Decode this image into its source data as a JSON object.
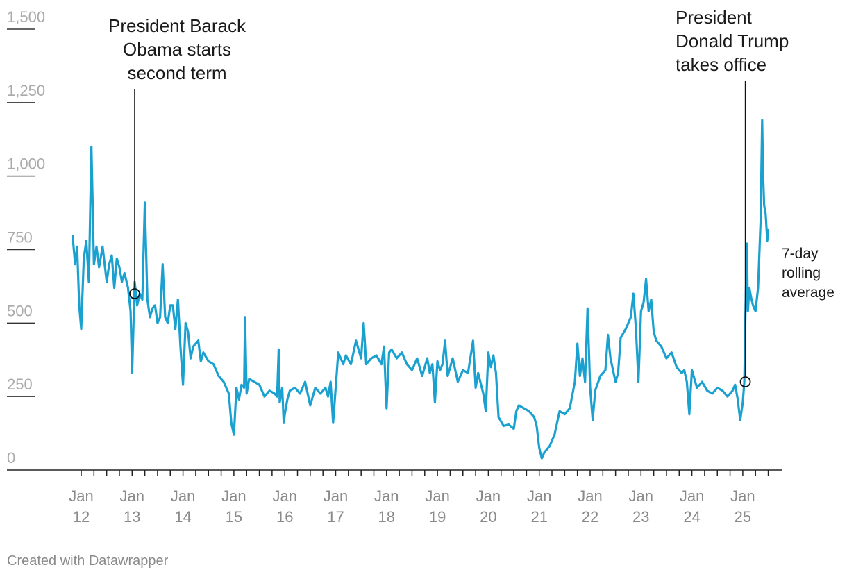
{
  "chart_data": {
    "type": "line",
    "title": "",
    "xlabel": "",
    "ylabel": "",
    "ylim": [
      0,
      1500
    ],
    "y_ticks": [
      "1,500",
      "1,250",
      "1,000",
      "750",
      "500",
      "250",
      "0"
    ],
    "y_tick_values": [
      1500,
      1250,
      1000,
      750,
      500,
      250,
      0
    ],
    "x_ticks": [
      {
        "month": "Jan",
        "year": "12",
        "value": 2012
      },
      {
        "month": "Jan",
        "year": "13",
        "value": 2013
      },
      {
        "month": "Jan",
        "year": "14",
        "value": 2014
      },
      {
        "month": "Jan",
        "year": "15",
        "value": 2015
      },
      {
        "month": "Jan",
        "year": "16",
        "value": 2016
      },
      {
        "month": "Jan",
        "year": "17",
        "value": 2017
      },
      {
        "month": "Jan",
        "year": "18",
        "value": 2018
      },
      {
        "month": "Jan",
        "year": "19",
        "value": 2019
      },
      {
        "month": "Jan",
        "year": "20",
        "value": 2020
      },
      {
        "month": "Jan",
        "year": "21",
        "value": 2021
      },
      {
        "month": "Jan",
        "year": "22",
        "value": 2022
      },
      {
        "month": "Jan",
        "year": "23",
        "value": 2023
      },
      {
        "month": "Jan",
        "year": "24",
        "value": 2024
      },
      {
        "month": "Jan",
        "year": "25",
        "value": 2025
      }
    ],
    "xlim": [
      2011.8,
      2025.5
    ],
    "grid": false,
    "series": [
      {
        "name": "7-day rolling average",
        "color": "#1ba1d0",
        "points": [
          [
            2011.83,
            800
          ],
          [
            2011.88,
            700
          ],
          [
            2011.92,
            760
          ],
          [
            2011.96,
            560
          ],
          [
            2012.0,
            480
          ],
          [
            2012.05,
            720
          ],
          [
            2012.1,
            780
          ],
          [
            2012.15,
            640
          ],
          [
            2012.2,
            1100
          ],
          [
            2012.25,
            700
          ],
          [
            2012.3,
            760
          ],
          [
            2012.35,
            690
          ],
          [
            2012.42,
            760
          ],
          [
            2012.5,
            640
          ],
          [
            2012.55,
            700
          ],
          [
            2012.6,
            730
          ],
          [
            2012.65,
            620
          ],
          [
            2012.7,
            720
          ],
          [
            2012.75,
            690
          ],
          [
            2012.8,
            640
          ],
          [
            2012.85,
            670
          ],
          [
            2012.92,
            620
          ],
          [
            2012.97,
            540
          ],
          [
            2013.0,
            330
          ],
          [
            2013.05,
            640
          ],
          [
            2013.1,
            560
          ],
          [
            2013.15,
            600
          ],
          [
            2013.2,
            580
          ],
          [
            2013.25,
            910
          ],
          [
            2013.3,
            580
          ],
          [
            2013.35,
            520
          ],
          [
            2013.4,
            550
          ],
          [
            2013.45,
            560
          ],
          [
            2013.5,
            500
          ],
          [
            2013.55,
            520
          ],
          [
            2013.6,
            700
          ],
          [
            2013.65,
            520
          ],
          [
            2013.7,
            500
          ],
          [
            2013.75,
            560
          ],
          [
            2013.8,
            560
          ],
          [
            2013.85,
            480
          ],
          [
            2013.9,
            580
          ],
          [
            2013.95,
            420
          ],
          [
            2014.0,
            290
          ],
          [
            2014.05,
            500
          ],
          [
            2014.1,
            470
          ],
          [
            2014.15,
            380
          ],
          [
            2014.2,
            420
          ],
          [
            2014.3,
            440
          ],
          [
            2014.35,
            370
          ],
          [
            2014.4,
            400
          ],
          [
            2014.5,
            370
          ],
          [
            2014.6,
            360
          ],
          [
            2014.7,
            320
          ],
          [
            2014.8,
            300
          ],
          [
            2014.9,
            260
          ],
          [
            2014.95,
            160
          ],
          [
            2015.0,
            120
          ],
          [
            2015.05,
            280
          ],
          [
            2015.1,
            240
          ],
          [
            2015.15,
            290
          ],
          [
            2015.2,
            280
          ],
          [
            2015.22,
            520
          ],
          [
            2015.25,
            260
          ],
          [
            2015.3,
            310
          ],
          [
            2015.4,
            300
          ],
          [
            2015.5,
            290
          ],
          [
            2015.6,
            250
          ],
          [
            2015.7,
            270
          ],
          [
            2015.8,
            260
          ],
          [
            2015.85,
            250
          ],
          [
            2015.88,
            410
          ],
          [
            2015.9,
            230
          ],
          [
            2015.95,
            280
          ],
          [
            2015.98,
            160
          ],
          [
            2016.0,
            190
          ],
          [
            2016.05,
            240
          ],
          [
            2016.1,
            270
          ],
          [
            2016.2,
            280
          ],
          [
            2016.3,
            260
          ],
          [
            2016.4,
            300
          ],
          [
            2016.5,
            220
          ],
          [
            2016.6,
            280
          ],
          [
            2016.7,
            260
          ],
          [
            2016.8,
            280
          ],
          [
            2016.85,
            250
          ],
          [
            2016.9,
            300
          ],
          [
            2016.95,
            160
          ],
          [
            2017.0,
            280
          ],
          [
            2017.05,
            400
          ],
          [
            2017.1,
            380
          ],
          [
            2017.15,
            360
          ],
          [
            2017.2,
            390
          ],
          [
            2017.3,
            360
          ],
          [
            2017.4,
            440
          ],
          [
            2017.5,
            380
          ],
          [
            2017.55,
            500
          ],
          [
            2017.6,
            360
          ],
          [
            2017.7,
            380
          ],
          [
            2017.8,
            390
          ],
          [
            2017.9,
            360
          ],
          [
            2017.95,
            420
          ],
          [
            2018.0,
            210
          ],
          [
            2018.05,
            400
          ],
          [
            2018.1,
            410
          ],
          [
            2018.2,
            380
          ],
          [
            2018.3,
            400
          ],
          [
            2018.4,
            360
          ],
          [
            2018.5,
            340
          ],
          [
            2018.6,
            380
          ],
          [
            2018.7,
            320
          ],
          [
            2018.8,
            380
          ],
          [
            2018.85,
            330
          ],
          [
            2018.9,
            360
          ],
          [
            2018.95,
            230
          ],
          [
            2019.0,
            370
          ],
          [
            2019.05,
            340
          ],
          [
            2019.1,
            360
          ],
          [
            2019.15,
            440
          ],
          [
            2019.2,
            320
          ],
          [
            2019.3,
            380
          ],
          [
            2019.4,
            300
          ],
          [
            2019.5,
            340
          ],
          [
            2019.6,
            330
          ],
          [
            2019.7,
            440
          ],
          [
            2019.75,
            280
          ],
          [
            2019.8,
            330
          ],
          [
            2019.9,
            260
          ],
          [
            2019.95,
            200
          ],
          [
            2020.0,
            400
          ],
          [
            2020.05,
            350
          ],
          [
            2020.1,
            390
          ],
          [
            2020.15,
            330
          ],
          [
            2020.2,
            180
          ],
          [
            2020.3,
            150
          ],
          [
            2020.4,
            155
          ],
          [
            2020.5,
            140
          ],
          [
            2020.55,
            200
          ],
          [
            2020.6,
            220
          ],
          [
            2020.7,
            210
          ],
          [
            2020.8,
            200
          ],
          [
            2020.9,
            180
          ],
          [
            2020.95,
            150
          ],
          [
            2021.0,
            75
          ],
          [
            2021.05,
            40
          ],
          [
            2021.1,
            60
          ],
          [
            2021.2,
            80
          ],
          [
            2021.3,
            120
          ],
          [
            2021.4,
            200
          ],
          [
            2021.5,
            190
          ],
          [
            2021.6,
            210
          ],
          [
            2021.7,
            300
          ],
          [
            2021.75,
            430
          ],
          [
            2021.8,
            320
          ],
          [
            2021.85,
            380
          ],
          [
            2021.9,
            300
          ],
          [
            2021.95,
            550
          ],
          [
            2022.0,
            280
          ],
          [
            2022.05,
            170
          ],
          [
            2022.1,
            270
          ],
          [
            2022.2,
            320
          ],
          [
            2022.3,
            340
          ],
          [
            2022.35,
            460
          ],
          [
            2022.4,
            380
          ],
          [
            2022.5,
            300
          ],
          [
            2022.55,
            330
          ],
          [
            2022.6,
            450
          ],
          [
            2022.7,
            480
          ],
          [
            2022.8,
            520
          ],
          [
            2022.85,
            600
          ],
          [
            2022.9,
            480
          ],
          [
            2022.95,
            300
          ],
          [
            2023.0,
            540
          ],
          [
            2023.05,
            570
          ],
          [
            2023.1,
            650
          ],
          [
            2023.15,
            540
          ],
          [
            2023.2,
            580
          ],
          [
            2023.25,
            470
          ],
          [
            2023.3,
            440
          ],
          [
            2023.4,
            420
          ],
          [
            2023.5,
            380
          ],
          [
            2023.6,
            400
          ],
          [
            2023.7,
            350
          ],
          [
            2023.8,
            330
          ],
          [
            2023.85,
            340
          ],
          [
            2023.9,
            300
          ],
          [
            2023.95,
            190
          ],
          [
            2024.0,
            340
          ],
          [
            2024.1,
            280
          ],
          [
            2024.2,
            300
          ],
          [
            2024.3,
            270
          ],
          [
            2024.4,
            260
          ],
          [
            2024.5,
            280
          ],
          [
            2024.6,
            270
          ],
          [
            2024.7,
            250
          ],
          [
            2024.8,
            270
          ],
          [
            2024.85,
            290
          ],
          [
            2024.9,
            240
          ],
          [
            2024.95,
            170
          ],
          [
            2025.0,
            230
          ],
          [
            2025.03,
            300
          ],
          [
            2025.05,
            520
          ],
          [
            2025.08,
            770
          ],
          [
            2025.1,
            540
          ],
          [
            2025.13,
            620
          ],
          [
            2025.16,
            590
          ],
          [
            2025.2,
            560
          ],
          [
            2025.25,
            540
          ],
          [
            2025.3,
            620
          ],
          [
            2025.35,
            850
          ],
          [
            2025.38,
            1190
          ],
          [
            2025.4,
            1000
          ],
          [
            2025.42,
            900
          ],
          [
            2025.45,
            870
          ],
          [
            2025.48,
            780
          ],
          [
            2025.5,
            820
          ]
        ]
      }
    ],
    "annotations": [
      {
        "lines": [
          "President Barack",
          "Obama starts",
          "second term"
        ],
        "x": 2013.05,
        "y": 600
      },
      {
        "lines": [
          "President",
          "Donald Trump",
          "takes office"
        ],
        "x": 2025.05,
        "y": 300
      }
    ],
    "series_label": [
      "7-day",
      "rolling",
      "average"
    ],
    "credit": "Created with Datawrapper"
  }
}
